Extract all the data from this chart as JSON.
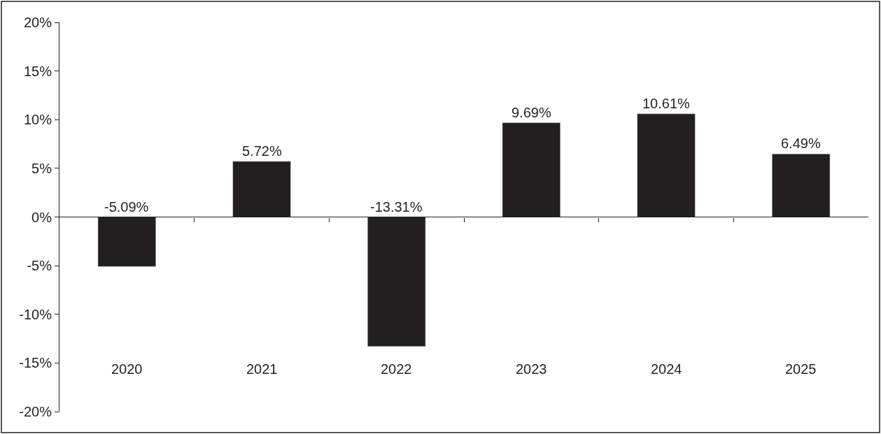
{
  "chart_data": {
    "type": "bar",
    "categories": [
      "2020",
      "2021",
      "2022",
      "2023",
      "2024",
      "2025"
    ],
    "values": [
      -5.09,
      5.72,
      -13.31,
      9.69,
      10.61,
      6.49
    ],
    "value_labels": [
      "-5.09%",
      "5.72%",
      "-13.31%",
      "9.69%",
      "10.61%",
      "6.49%"
    ],
    "color": "#231f20",
    "ylim": [
      -20,
      20
    ],
    "yticks": [
      {
        "value": -20,
        "label": "-20%"
      },
      {
        "value": -15,
        "label": "-15%"
      },
      {
        "value": -10,
        "label": "-10%"
      },
      {
        "value": -5,
        "label": "-5%"
      },
      {
        "value": 0,
        "label": "0%"
      },
      {
        "value": 5,
        "label": "5%"
      },
      {
        "value": 10,
        "label": "10%"
      },
      {
        "value": 15,
        "label": "15%"
      },
      {
        "value": 20,
        "label": "20%"
      }
    ],
    "ref_lines": [
      {
        "axis": "y",
        "value": 0,
        "color": "#231f20"
      }
    ],
    "grid": false,
    "legend": false
  }
}
